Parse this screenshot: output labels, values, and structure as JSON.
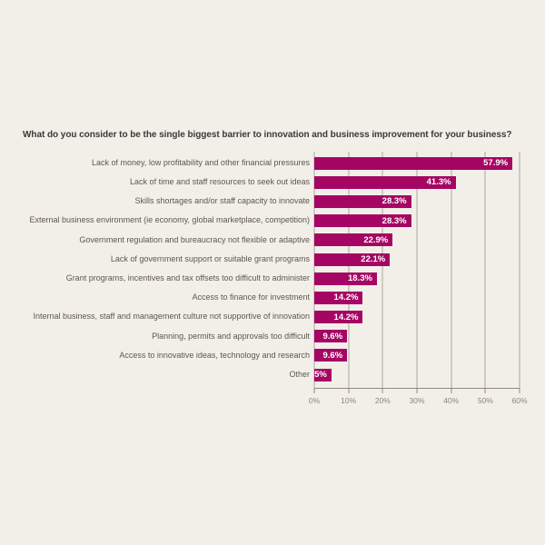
{
  "page": {
    "background": "#F2EFE9"
  },
  "chart_data": {
    "type": "bar",
    "orientation": "horizontal",
    "title": "What do you consider to be the single biggest barrier to innovation and business improvement for your business?",
    "categories": [
      "Lack of money, low profitability and other financial pressures",
      "Lack of time and staff resources to seek out ideas",
      "Skills shortages and/or staff capacity to innovate",
      "External business environment (ie economy, global marketplace, competition)",
      "Government regulation and bureaucracy not flexible or adaptive",
      "Lack of government support or suitable grant programs",
      "Grant programs, incentives and tax offsets too difficult to administer",
      "Access to finance for investment",
      "Internal business, staff and management culture not supportive of innovation",
      "Planning, permits and approvals too difficult",
      "Access to innovative ideas, technology and research",
      "Other"
    ],
    "values": [
      57.9,
      41.3,
      28.3,
      28.3,
      22.9,
      22.1,
      18.3,
      14.2,
      14.2,
      9.6,
      9.6,
      5
    ],
    "value_labels": [
      "57.9%",
      "41.3%",
      "28.3%",
      "28.3%",
      "22.9%",
      "22.1%",
      "18.3%",
      "14.2%",
      "14.2%",
      "9.6%",
      "9.6%",
      "5%"
    ],
    "x_ticks": [
      "0%",
      "10%",
      "20%",
      "30%",
      "40%",
      "50%",
      "60%"
    ],
    "xlim": [
      0,
      60
    ],
    "grid": true,
    "legend": false,
    "colors": {
      "background": "#F2EFE9",
      "bar": "#A50664",
      "title_text": "#3C3835",
      "category_text": "#5C564F",
      "value_text": "#FFFFFF",
      "grid_line": "#ACA69E",
      "axis_line": "#8F8981",
      "tick_text": "#8A847C"
    }
  }
}
